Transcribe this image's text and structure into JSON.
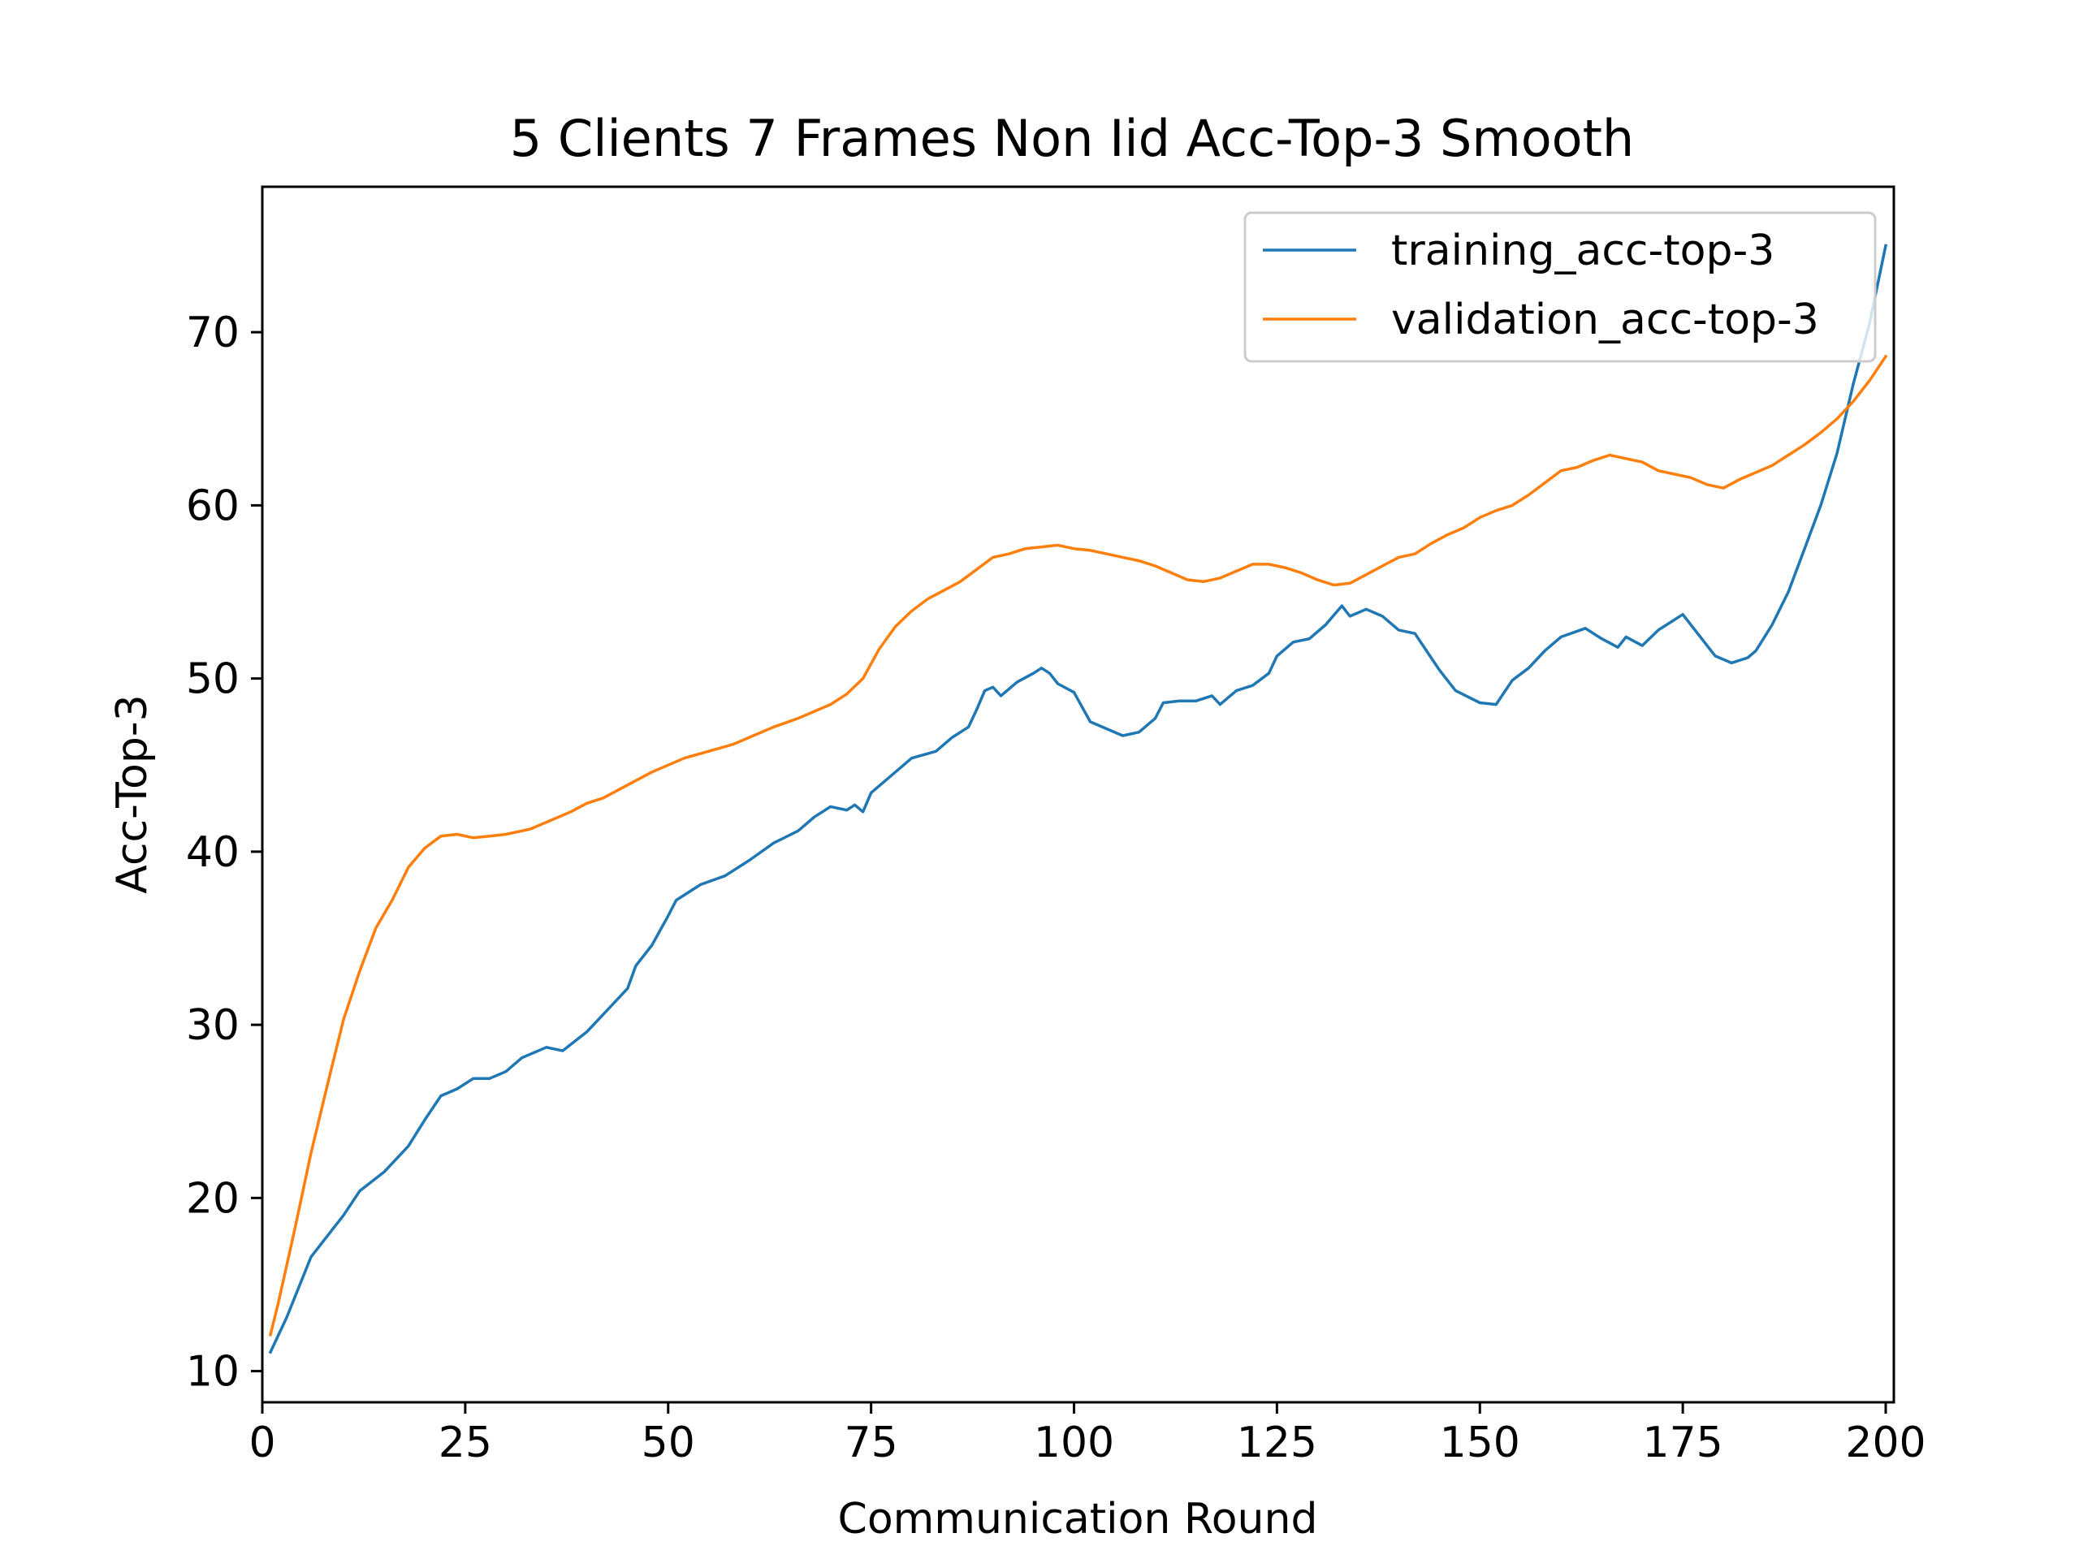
{
  "chart_data": {
    "type": "line",
    "title": "5 Clients 7 Frames Non Iid Acc-Top-3 Smooth",
    "xlabel": "Communication Round",
    "ylabel": "Acc-Top-3",
    "xlim": [
      0,
      201
    ],
    "ylim": [
      8.2,
      78.4
    ],
    "xticks": [
      0,
      25,
      50,
      75,
      100,
      125,
      150,
      175,
      200
    ],
    "yticks": [
      10,
      20,
      30,
      40,
      50,
      60,
      70
    ],
    "grid": false,
    "legend_position": "top-right",
    "series": [
      {
        "name": "training_acc-top-3",
        "color": "#1f77b4",
        "points": [
          [
            1,
            11.1
          ],
          [
            3,
            13.1
          ],
          [
            6,
            16.6
          ],
          [
            10,
            19.0
          ],
          [
            12,
            20.4
          ],
          [
            15,
            21.5
          ],
          [
            18,
            23.0
          ],
          [
            20,
            24.5
          ],
          [
            22,
            25.9
          ],
          [
            24,
            26.3
          ],
          [
            26,
            26.9
          ],
          [
            28,
            26.9
          ],
          [
            30,
            27.3
          ],
          [
            32,
            28.1
          ],
          [
            35,
            28.7
          ],
          [
            37,
            28.5
          ],
          [
            40,
            29.6
          ],
          [
            42,
            30.6
          ],
          [
            45,
            32.1
          ],
          [
            46,
            33.4
          ],
          [
            48,
            34.6
          ],
          [
            50,
            36.3
          ],
          [
            51,
            37.2
          ],
          [
            54,
            38.1
          ],
          [
            57,
            38.6
          ],
          [
            60,
            39.5
          ],
          [
            63,
            40.5
          ],
          [
            66,
            41.2
          ],
          [
            68,
            42.0
          ],
          [
            70,
            42.6
          ],
          [
            72,
            42.4
          ],
          [
            73,
            42.7
          ],
          [
            74,
            42.3
          ],
          [
            75,
            43.4
          ],
          [
            78,
            44.6
          ],
          [
            80,
            45.4
          ],
          [
            83,
            45.8
          ],
          [
            85,
            46.6
          ],
          [
            87,
            47.2
          ],
          [
            88,
            48.2
          ],
          [
            89,
            49.3
          ],
          [
            90,
            49.5
          ],
          [
            91,
            49.0
          ],
          [
            93,
            49.8
          ],
          [
            95,
            50.3
          ],
          [
            96,
            50.6
          ],
          [
            97,
            50.3
          ],
          [
            98,
            49.7
          ],
          [
            100,
            49.2
          ],
          [
            102,
            47.5
          ],
          [
            104,
            47.1
          ],
          [
            106,
            46.7
          ],
          [
            108,
            46.9
          ],
          [
            110,
            47.7
          ],
          [
            111,
            48.6
          ],
          [
            113,
            48.7
          ],
          [
            115,
            48.7
          ],
          [
            117,
            49.0
          ],
          [
            118,
            48.5
          ],
          [
            120,
            49.3
          ],
          [
            122,
            49.6
          ],
          [
            124,
            50.3
          ],
          [
            125,
            51.3
          ],
          [
            127,
            52.1
          ],
          [
            129,
            52.3
          ],
          [
            131,
            53.1
          ],
          [
            133,
            54.2
          ],
          [
            134,
            53.6
          ],
          [
            136,
            54.0
          ],
          [
            138,
            53.6
          ],
          [
            140,
            52.8
          ],
          [
            142,
            52.6
          ],
          [
            145,
            50.5
          ],
          [
            147,
            49.3
          ],
          [
            150,
            48.6
          ],
          [
            152,
            48.5
          ],
          [
            154,
            49.9
          ],
          [
            156,
            50.6
          ],
          [
            158,
            51.6
          ],
          [
            160,
            52.4
          ],
          [
            163,
            52.9
          ],
          [
            165,
            52.3
          ],
          [
            167,
            51.8
          ],
          [
            168,
            52.4
          ],
          [
            170,
            51.9
          ],
          [
            172,
            52.8
          ],
          [
            174,
            53.4
          ],
          [
            175,
            53.7
          ],
          [
            177,
            52.5
          ],
          [
            179,
            51.3
          ],
          [
            181,
            50.9
          ],
          [
            183,
            51.2
          ],
          [
            184,
            51.6
          ],
          [
            186,
            53.1
          ],
          [
            188,
            55.0
          ],
          [
            190,
            57.5
          ],
          [
            192,
            60.0
          ],
          [
            194,
            63.0
          ],
          [
            196,
            67.0
          ],
          [
            198,
            70.5
          ],
          [
            200,
            75.0
          ]
        ]
      },
      {
        "name": "validation_acc-top-3",
        "color": "#ff7f0e",
        "points": [
          [
            1,
            12.1
          ],
          [
            2,
            14.0
          ],
          [
            4,
            18.2
          ],
          [
            6,
            22.6
          ],
          [
            8,
            26.5
          ],
          [
            10,
            30.3
          ],
          [
            12,
            33.1
          ],
          [
            14,
            35.6
          ],
          [
            16,
            37.2
          ],
          [
            18,
            39.1
          ],
          [
            20,
            40.2
          ],
          [
            22,
            40.9
          ],
          [
            24,
            41.0
          ],
          [
            26,
            40.8
          ],
          [
            28,
            40.9
          ],
          [
            30,
            41.0
          ],
          [
            33,
            41.3
          ],
          [
            35,
            41.7
          ],
          [
            38,
            42.3
          ],
          [
            40,
            42.8
          ],
          [
            42,
            43.1
          ],
          [
            44,
            43.6
          ],
          [
            46,
            44.1
          ],
          [
            48,
            44.6
          ],
          [
            50,
            45.0
          ],
          [
            52,
            45.4
          ],
          [
            55,
            45.8
          ],
          [
            58,
            46.2
          ],
          [
            60,
            46.6
          ],
          [
            63,
            47.2
          ],
          [
            66,
            47.7
          ],
          [
            68,
            48.1
          ],
          [
            70,
            48.5
          ],
          [
            72,
            49.1
          ],
          [
            74,
            50.0
          ],
          [
            76,
            51.7
          ],
          [
            78,
            53.0
          ],
          [
            80,
            53.9
          ],
          [
            82,
            54.6
          ],
          [
            84,
            55.1
          ],
          [
            86,
            55.6
          ],
          [
            88,
            56.3
          ],
          [
            90,
            57.0
          ],
          [
            92,
            57.2
          ],
          [
            94,
            57.5
          ],
          [
            96,
            57.6
          ],
          [
            98,
            57.7
          ],
          [
            100,
            57.5
          ],
          [
            102,
            57.4
          ],
          [
            104,
            57.2
          ],
          [
            106,
            57.0
          ],
          [
            108,
            56.8
          ],
          [
            110,
            56.5
          ],
          [
            112,
            56.1
          ],
          [
            114,
            55.7
          ],
          [
            116,
            55.6
          ],
          [
            118,
            55.8
          ],
          [
            120,
            56.2
          ],
          [
            122,
            56.6
          ],
          [
            124,
            56.6
          ],
          [
            126,
            56.4
          ],
          [
            128,
            56.1
          ],
          [
            130,
            55.7
          ],
          [
            132,
            55.4
          ],
          [
            134,
            55.5
          ],
          [
            136,
            56.0
          ],
          [
            138,
            56.5
          ],
          [
            140,
            57.0
          ],
          [
            142,
            57.2
          ],
          [
            144,
            57.8
          ],
          [
            146,
            58.3
          ],
          [
            148,
            58.7
          ],
          [
            150,
            59.3
          ],
          [
            152,
            59.7
          ],
          [
            154,
            60.0
          ],
          [
            156,
            60.6
          ],
          [
            158,
            61.3
          ],
          [
            160,
            62.0
          ],
          [
            162,
            62.2
          ],
          [
            164,
            62.6
          ],
          [
            166,
            62.9
          ],
          [
            168,
            62.7
          ],
          [
            170,
            62.5
          ],
          [
            172,
            62.0
          ],
          [
            174,
            61.8
          ],
          [
            176,
            61.6
          ],
          [
            178,
            61.2
          ],
          [
            180,
            61.0
          ],
          [
            182,
            61.5
          ],
          [
            184,
            61.9
          ],
          [
            186,
            62.3
          ],
          [
            188,
            62.9
          ],
          [
            190,
            63.5
          ],
          [
            192,
            64.2
          ],
          [
            194,
            65.0
          ],
          [
            196,
            66.0
          ],
          [
            198,
            67.2
          ],
          [
            200,
            68.6
          ]
        ]
      }
    ]
  }
}
